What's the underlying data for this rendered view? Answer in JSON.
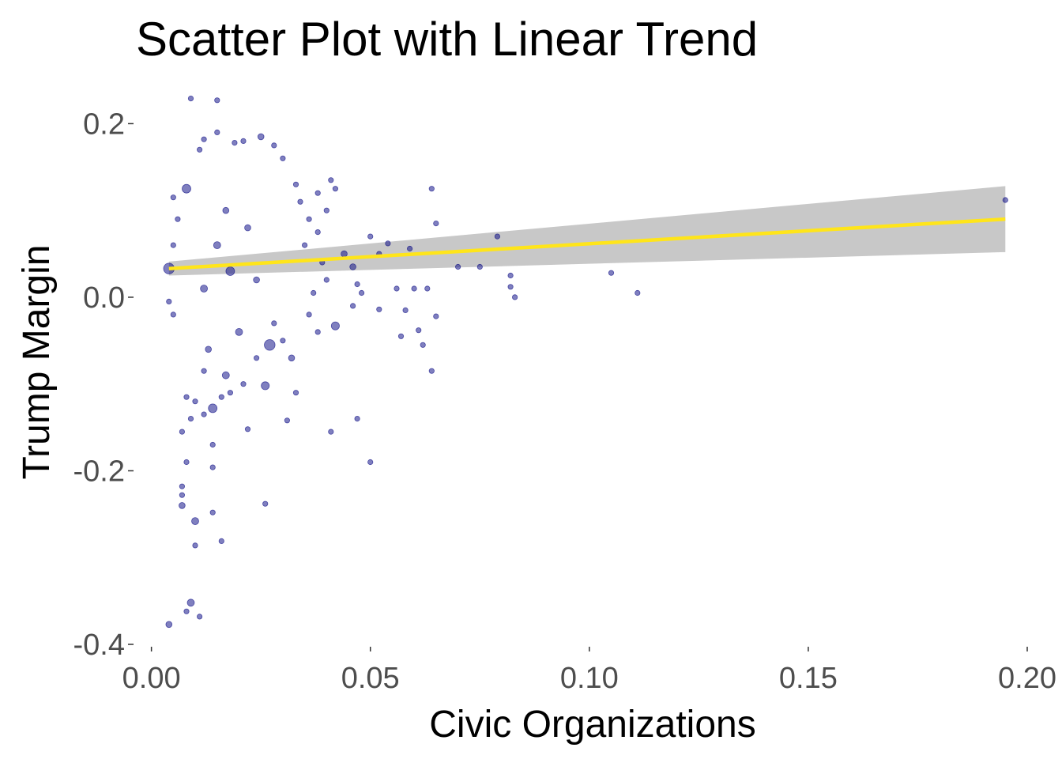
{
  "chart_data": {
    "type": "scatter",
    "title": "Scatter Plot with Linear Trend",
    "xlabel": "Civic Organizations",
    "ylabel": "Trump Margin",
    "xlim": [
      -0.003,
      0.2
    ],
    "ylim": [
      -0.4,
      0.235
    ],
    "x_ticks": [
      0.0,
      0.05,
      0.1,
      0.15,
      0.2
    ],
    "x_tick_labels": [
      "0.00",
      "0.05",
      "0.10",
      "0.15",
      "0.20"
    ],
    "y_ticks": [
      -0.4,
      -0.2,
      0.0,
      0.2
    ],
    "y_tick_labels": [
      "-0.4",
      "-0.2",
      "0.0",
      "0.2"
    ],
    "grid": false,
    "legend": "none",
    "colors": {
      "points": "#000080",
      "trend_line": "#FFE51A",
      "confidence_band": "#C8C8C8"
    },
    "trend": {
      "x": [
        0.004,
        0.195
      ],
      "y": [
        0.033,
        0.09
      ],
      "ci_lower": [
        0.025,
        0.052
      ],
      "ci_upper": [
        0.041,
        0.128
      ]
    },
    "series": [
      {
        "points": [
          [
            0.009,
            0.229,
            1
          ],
          [
            0.015,
            0.227,
            1
          ],
          [
            0.004,
            -0.377,
            1.5
          ],
          [
            0.008,
            -0.362,
            1
          ],
          [
            0.009,
            -0.352,
            2
          ],
          [
            0.011,
            -0.368,
            1
          ],
          [
            0.01,
            -0.286,
            1
          ],
          [
            0.016,
            -0.281,
            1
          ],
          [
            0.01,
            -0.258,
            2
          ],
          [
            0.014,
            -0.248,
            1
          ],
          [
            0.007,
            -0.24,
            1.5
          ],
          [
            0.007,
            -0.228,
            1
          ],
          [
            0.007,
            -0.218,
            1
          ],
          [
            0.026,
            -0.238,
            1
          ],
          [
            0.05,
            -0.19,
            1
          ],
          [
            0.008,
            -0.19,
            1
          ],
          [
            0.014,
            -0.196,
            1
          ],
          [
            0.014,
            -0.17,
            1
          ],
          [
            0.041,
            -0.155,
            1
          ],
          [
            0.047,
            -0.14,
            1
          ],
          [
            0.022,
            -0.152,
            1
          ],
          [
            0.007,
            -0.155,
            1
          ],
          [
            0.031,
            -0.142,
            1
          ],
          [
            0.014,
            -0.128,
            3
          ],
          [
            0.026,
            -0.102,
            2.5
          ],
          [
            0.033,
            -0.11,
            1
          ],
          [
            0.017,
            -0.09,
            2
          ],
          [
            0.012,
            -0.085,
            1
          ],
          [
            0.064,
            -0.085,
            1
          ],
          [
            0.062,
            -0.055,
            1
          ],
          [
            0.057,
            -0.045,
            1
          ],
          [
            0.061,
            -0.038,
            1
          ],
          [
            0.065,
            -0.022,
            1
          ],
          [
            0.058,
            -0.015,
            1
          ],
          [
            0.042,
            -0.033,
            2.5
          ],
          [
            0.027,
            -0.055,
            4.5
          ],
          [
            0.004,
            0.033,
            4.5
          ],
          [
            0.008,
            0.125,
            3
          ],
          [
            0.065,
            0.085,
            1
          ],
          [
            0.064,
            0.125,
            1
          ],
          [
            0.07,
            0.035,
            1
          ],
          [
            0.075,
            0.035,
            1
          ],
          [
            0.079,
            0.07,
            1
          ],
          [
            0.082,
            0.025,
            1
          ],
          [
            0.082,
            0.012,
            1
          ],
          [
            0.083,
            0.0,
            1
          ],
          [
            0.105,
            0.028,
            1
          ],
          [
            0.111,
            0.005,
            1
          ],
          [
            0.195,
            0.112,
            1
          ],
          [
            0.059,
            0.056,
            1
          ],
          [
            0.054,
            0.062,
            1
          ],
          [
            0.05,
            0.07,
            1
          ],
          [
            0.052,
            0.05,
            1
          ],
          [
            0.056,
            0.01,
            1
          ],
          [
            0.06,
            0.01,
            1
          ],
          [
            0.063,
            0.01,
            1
          ],
          [
            0.052,
            -0.014,
            1
          ],
          [
            0.044,
            0.05,
            1.5
          ],
          [
            0.046,
            0.035,
            1.5
          ],
          [
            0.047,
            0.015,
            1
          ],
          [
            0.048,
            0.005,
            1
          ],
          [
            0.046,
            -0.01,
            1
          ],
          [
            0.041,
            0.135,
            1
          ],
          [
            0.038,
            0.12,
            1
          ],
          [
            0.04,
            0.1,
            1
          ],
          [
            0.042,
            0.125,
            1
          ],
          [
            0.036,
            0.09,
            1
          ],
          [
            0.038,
            0.075,
            1
          ],
          [
            0.035,
            0.06,
            1
          ],
          [
            0.039,
            0.04,
            1
          ],
          [
            0.04,
            0.02,
            1
          ],
          [
            0.037,
            0.005,
            1
          ],
          [
            0.036,
            -0.02,
            1
          ],
          [
            0.038,
            -0.04,
            1
          ],
          [
            0.034,
            0.11,
            1
          ],
          [
            0.033,
            0.13,
            1
          ],
          [
            0.03,
            0.16,
            1
          ],
          [
            0.028,
            0.175,
            1
          ],
          [
            0.025,
            0.185,
            1.5
          ],
          [
            0.021,
            0.18,
            1
          ],
          [
            0.019,
            0.178,
            1
          ],
          [
            0.015,
            0.19,
            1
          ],
          [
            0.012,
            0.182,
            1
          ],
          [
            0.011,
            0.17,
            1
          ],
          [
            0.032,
            -0.07,
            1.5
          ],
          [
            0.03,
            -0.05,
            1
          ],
          [
            0.028,
            -0.03,
            1
          ],
          [
            0.024,
            -0.07,
            1
          ],
          [
            0.021,
            -0.1,
            1
          ],
          [
            0.018,
            -0.11,
            1
          ],
          [
            0.016,
            -0.115,
            1
          ],
          [
            0.012,
            -0.135,
            1
          ],
          [
            0.009,
            -0.14,
            1
          ],
          [
            0.01,
            -0.12,
            1
          ],
          [
            0.008,
            -0.115,
            1
          ],
          [
            0.005,
            -0.02,
            1
          ],
          [
            0.004,
            -0.005,
            1
          ],
          [
            0.005,
            0.06,
            1
          ],
          [
            0.006,
            0.09,
            1
          ],
          [
            0.005,
            0.115,
            1
          ],
          [
            0.018,
            0.03,
            3
          ],
          [
            0.012,
            0.01,
            2
          ],
          [
            0.02,
            -0.04,
            2
          ],
          [
            0.015,
            0.06,
            2
          ],
          [
            0.022,
            0.08,
            1.5
          ],
          [
            0.013,
            -0.06,
            1.5
          ],
          [
            0.017,
            0.1,
            1.5
          ],
          [
            0.024,
            0.02,
            1.5
          ]
        ]
      }
    ]
  }
}
